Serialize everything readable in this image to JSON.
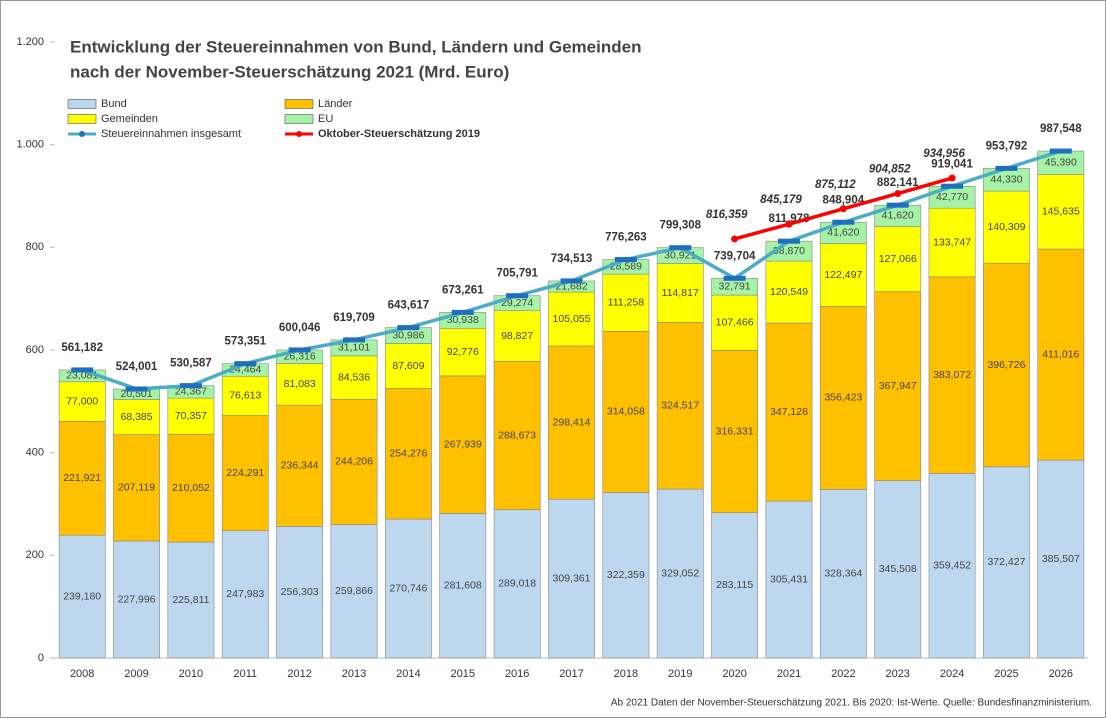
{
  "chart_data": {
    "type": "bar",
    "stacked": true,
    "title": [
      "Entwicklung der Steuereinnahmen von Bund, Ländern und Gemeinden",
      "nach der November-Steuerschätzung 2021 (Mrd. Euro)"
    ],
    "footnote": "Ab 2021 Daten der November-Steuerschätzung 2021. Bis 2020: Ist-Werte. Quelle: Bundesfinanzministerium.",
    "categories": [
      "2008",
      "2009",
      "2010",
      "2011",
      "2012",
      "2013",
      "2014",
      "2015",
      "2016",
      "2017",
      "2018",
      "2019",
      "2020",
      "2021",
      "2022",
      "2023",
      "2024",
      "2025",
      "2026"
    ],
    "ylim": [
      0,
      1200
    ],
    "yticks": [
      0,
      200,
      400,
      600,
      800,
      {
        "value": 1000,
        "label": "1.000"
      },
      {
        "value": 1200,
        "label": "1.200"
      }
    ],
    "grid": false,
    "series": [
      {
        "name": "Bund",
        "color": "#bdd7ee",
        "values": [
          239.18,
          227.996,
          225.811,
          247.983,
          256.303,
          259.866,
          270.746,
          281.608,
          289.018,
          309.361,
          322.359,
          329.052,
          283.115,
          305.431,
          328.364,
          345.508,
          359.452,
          372.427,
          385.507
        ],
        "value_labels": [
          "239,180",
          "227,996",
          "225,811",
          "247,983",
          "256,303",
          "259,866",
          "270,746",
          "281,608",
          "289,018",
          "309,361",
          "322,359",
          "329,052",
          "283,115",
          "305,431",
          "328,364",
          "345,508",
          "359,452",
          "372,427",
          "385,507"
        ]
      },
      {
        "name": "Länder",
        "color": "#ffc000",
        "values": [
          221.921,
          207.119,
          210.052,
          224.291,
          236.344,
          244.206,
          254.276,
          267.939,
          288.673,
          298.414,
          314.058,
          324.517,
          316.331,
          347.128,
          356.423,
          367.947,
          383.072,
          396.726,
          411.016
        ],
        "value_labels": [
          "221,921",
          "207,119",
          "210,052",
          "224,291",
          "236,344",
          "244,206",
          "254,276",
          "267,939",
          "288,673",
          "298,414",
          "314,058",
          "324,517",
          "316,331",
          "347,128",
          "356,423",
          "367,947",
          "383,072",
          "396,726",
          "411,016"
        ]
      },
      {
        "name": "Gemeinden",
        "color": "#ffff00",
        "values": [
          77,
          68.385,
          70.357,
          76.613,
          81.083,
          84.536,
          87.609,
          92.776,
          98.827,
          105.055,
          111.258,
          114.817,
          107.466,
          120.549,
          122.497,
          127.066,
          133.747,
          140.309,
          145.635
        ],
        "value_labels": [
          "77,000",
          "68,385",
          "70,357",
          "76,613",
          "81,083",
          "84,536",
          "87,609",
          "92,776",
          "98,827",
          "105,055",
          "111,258",
          "114,817",
          "107,466",
          "120,549",
          "122,497",
          "127,066",
          "133,747",
          "140,309",
          "145,635"
        ]
      },
      {
        "name": "EU",
        "color": "#a6f2a6",
        "values": [
          23.081,
          20.501,
          24.367,
          24.464,
          26.316,
          31.101,
          30.986,
          30.938,
          29.274,
          21.682,
          28.589,
          30.921,
          32.791,
          38.87,
          41.62,
          41.62,
          42.77,
          44.33,
          45.39
        ],
        "value_labels": [
          "23,081",
          "20,501",
          "24,367",
          "24,464",
          "26,316",
          "31,101",
          "30,986",
          "30,938",
          "29,274",
          "21,682",
          "28,589",
          "30,921",
          "32,791",
          "38,870",
          "41,620",
          "41,620",
          "42,770",
          "44,330",
          "45,390"
        ]
      },
      {
        "name": "Steuereinnahmen insgesamt",
        "type": "line",
        "color": "#4bacc6",
        "label_color": "#3344cc",
        "values": [
          561.182,
          524.001,
          530.587,
          573.351,
          600.046,
          619.709,
          643.617,
          673.261,
          705.791,
          734.513,
          776.263,
          799.308,
          739.704,
          811.978,
          848.904,
          882.141,
          919.041,
          953.792,
          987.548
        ],
        "value_labels": [
          "561,182",
          "524,001",
          "530,587",
          "573,351",
          "600,046",
          "619,709",
          "643,617",
          "673,261",
          "705,791",
          "734,513",
          "776,263",
          "799,308",
          "739,704",
          "811,978",
          "848,904",
          "882,141",
          "919,041",
          "953,792",
          "987,548"
        ]
      },
      {
        "name": "Oktober-Steuerschätzung 2019",
        "type": "line",
        "color": "#ff0000",
        "label_color": "#ff0000",
        "values": [
          null,
          null,
          null,
          null,
          null,
          null,
          null,
          null,
          null,
          null,
          null,
          null,
          816.359,
          845.179,
          875.112,
          904.852,
          934.956,
          null,
          null
        ],
        "value_labels": [
          null,
          null,
          null,
          null,
          null,
          null,
          null,
          null,
          null,
          null,
          null,
          null,
          "816,359",
          "845,179",
          "875,112",
          "904,852",
          "934,956",
          null,
          null
        ]
      }
    ]
  }
}
